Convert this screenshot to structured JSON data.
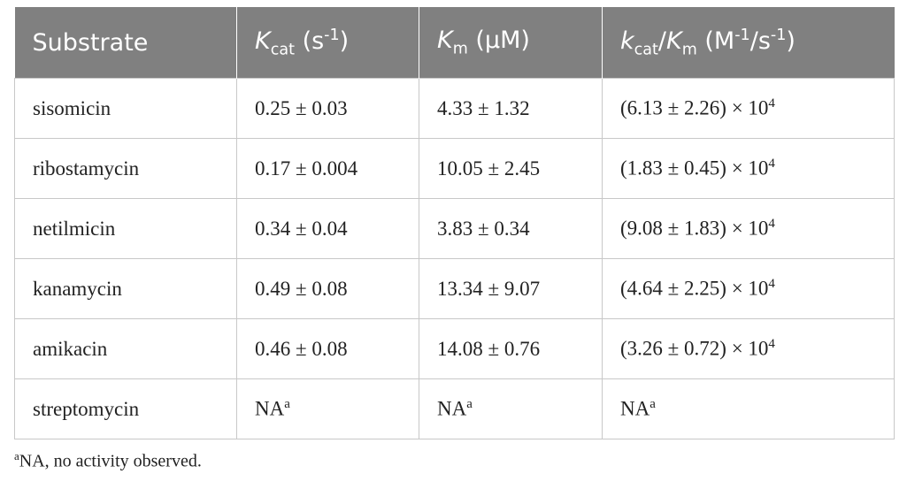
{
  "table": {
    "header": [
      [
        "Substrate"
      ],
      [
        "K",
        "cat",
        " (s",
        "-1",
        ")"
      ],
      [
        "K",
        "m",
        " (µM)"
      ],
      [
        "k",
        "cat",
        "/",
        "K",
        "m",
        " (M",
        "-1",
        "/s",
        "-1",
        ")"
      ]
    ],
    "rows": [
      [
        "sisomicin",
        "0.25 ± 0.03",
        "4.33 ± 1.32",
        [
          "(6.13 ± 2.26) × 10",
          "4"
        ]
      ],
      [
        "ribostamycin",
        "0.17 ± 0.004",
        "10.05 ± 2.45",
        [
          "(1.83 ± 0.45) × 10",
          "4"
        ]
      ],
      [
        "netilmicin",
        "0.34 ± 0.04",
        "3.83 ± 0.34",
        [
          "(9.08 ± 1.83) × 10",
          "4"
        ]
      ],
      [
        "kanamycin",
        "0.49 ± 0.08",
        "13.34 ± 9.07",
        [
          "(4.64 ± 2.25) × 10",
          "4"
        ]
      ],
      [
        "amikacin",
        "0.46 ± 0.08",
        "14.08 ± 0.76",
        [
          "(3.26 ± 0.72) × 10",
          "4"
        ]
      ],
      [
        "streptomycin",
        [
          "NA",
          "a"
        ],
        [
          "NA",
          "a"
        ],
        [
          "NA",
          "a"
        ]
      ]
    ],
    "footnote": [
      "a",
      "NA, no activity observed."
    ]
  }
}
